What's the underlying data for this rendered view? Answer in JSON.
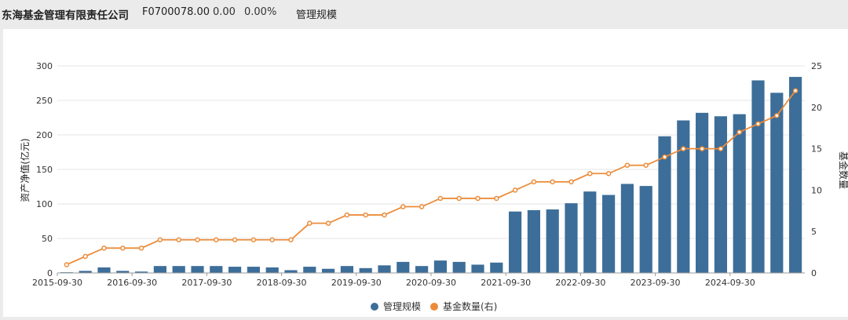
{
  "header": {
    "company": "东海基金管理有限责任公司",
    "code": "F0700078.00",
    "price": "0.00",
    "change_pct": "0.00%",
    "metric": "管理规模"
  },
  "chart_data": {
    "type": "bar+line",
    "x_tick_labels": [
      "2015-09-30",
      "2016-09-30",
      "2017-09-30",
      "2018-09-30",
      "2019-09-30",
      "2020-09-30",
      "2021-09-30",
      "2022-09-30",
      "2023-09-30",
      "2024-09-30"
    ],
    "ylabel_left": "资产净值(亿元)",
    "ylabel_right": "基金数量",
    "y_left_ticks": [
      0,
      50,
      100,
      150,
      200,
      250,
      300
    ],
    "y_right_ticks": [
      0,
      5,
      10,
      15,
      20,
      25
    ],
    "ylim_left": [
      0,
      300
    ],
    "ylim_right": [
      0,
      25
    ],
    "grid": true,
    "legend_position": "bottom-center",
    "series": [
      {
        "name": "管理规模",
        "type": "bar",
        "axis": "left",
        "color": "#3d6e99",
        "values": [
          1,
          3,
          8,
          3,
          2,
          10,
          10,
          10,
          10,
          9,
          9,
          8,
          4,
          9,
          6,
          10,
          7,
          11,
          16,
          10,
          18,
          16,
          12,
          15,
          89,
          91,
          92,
          101,
          118,
          113,
          129,
          126,
          198,
          221,
          232,
          227,
          230,
          279,
          261,
          284
        ]
      },
      {
        "name": "基金数量(右)",
        "type": "line",
        "axis": "right",
        "color": "#ec8c3a",
        "values": [
          1,
          2,
          3,
          3,
          3,
          4,
          4,
          4,
          4,
          4,
          4,
          4,
          4,
          6,
          6,
          7,
          7,
          7,
          8,
          8,
          9,
          9,
          9,
          9,
          10,
          11,
          11,
          11,
          12,
          12,
          13,
          13,
          14,
          15,
          15,
          15,
          17,
          18,
          19,
          22
        ]
      }
    ]
  }
}
